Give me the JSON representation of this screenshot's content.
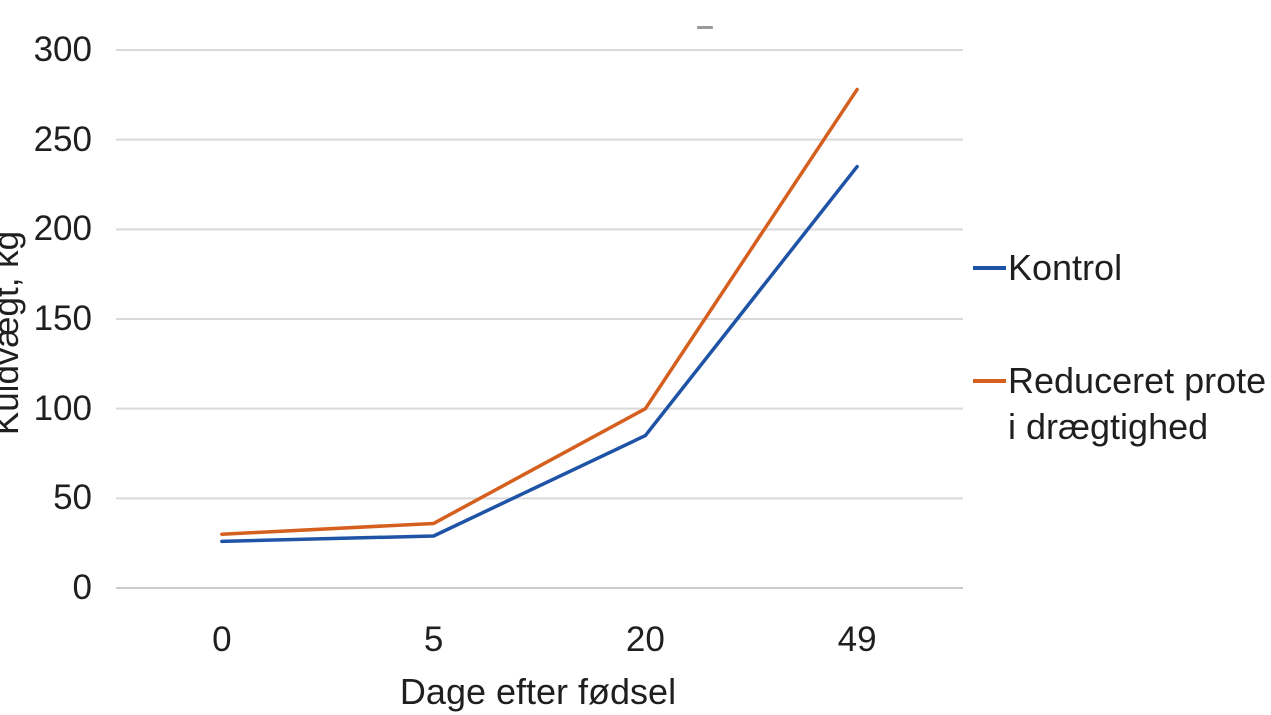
{
  "chart_data": {
    "type": "line",
    "title": "",
    "categories": [
      "0",
      "5",
      "20",
      "49"
    ],
    "series": [
      {
        "name": "Kontrol",
        "color": "#1F53A6",
        "values": [
          26,
          29,
          85,
          235
        ]
      },
      {
        "name": "Reduceret prote i drægtighed",
        "color": "#D45F1E",
        "values": [
          30,
          36,
          100,
          278
        ]
      }
    ],
    "xlabel": "Dage efter fødsel",
    "ylabel": "Kuldvægt, kg",
    "ylim": [
      0,
      300
    ],
    "yticks": [
      0,
      50,
      100,
      150,
      200,
      250,
      300
    ],
    "grid": true,
    "legend_position": "right"
  },
  "legend": {
    "entries": [
      {
        "color": "#1F53A6",
        "lines": [
          "Kontrol"
        ]
      },
      {
        "color": "#D45F1E",
        "lines": [
          "Reduceret prote",
          "i drægtighed"
        ]
      }
    ]
  },
  "decor": {
    "title_dash_color": "#9B9B9B",
    "gridline_color": "#D9D9D9",
    "axis_line_color": "#CBCBCB",
    "text_color": "#1F1F1F"
  }
}
